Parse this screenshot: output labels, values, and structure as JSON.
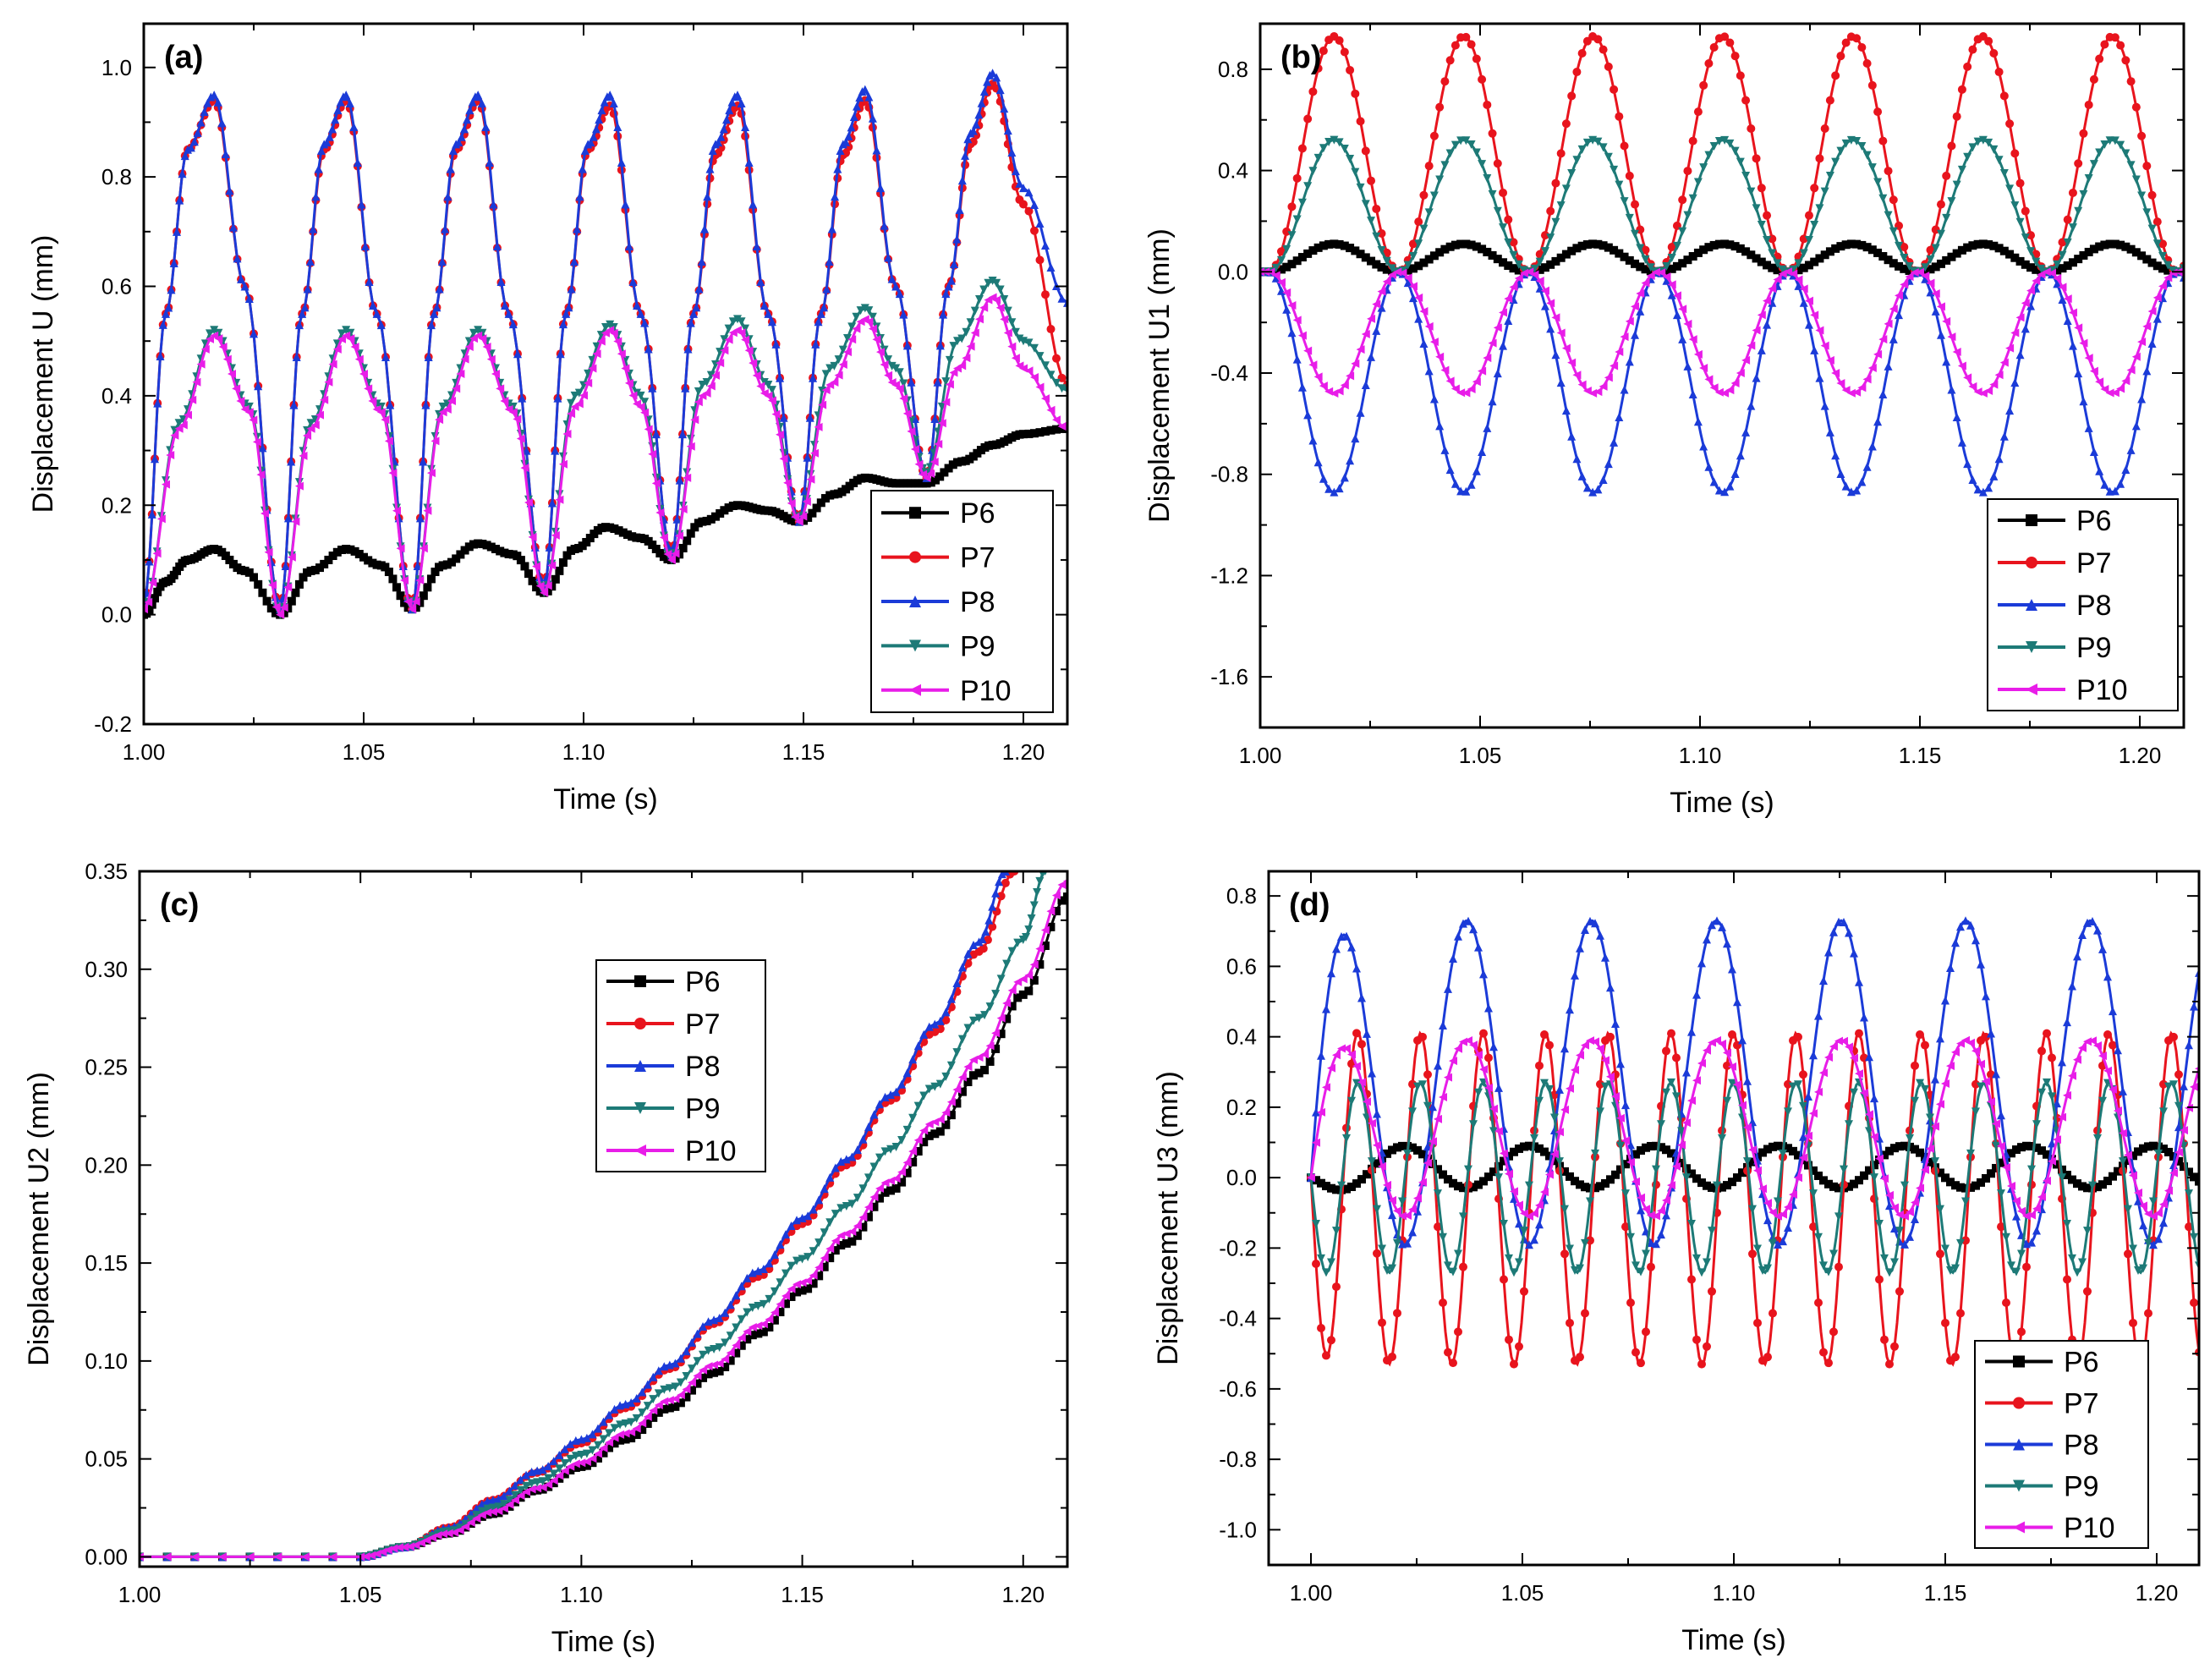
{
  "chart_data": [
    {
      "panel": "(a)",
      "type": "line",
      "xlabel": "Time (s)",
      "ylabel": "Displacement U (mm)",
      "xlim": [
        1.0,
        1.21
      ],
      "ylim": [
        -0.2,
        1.08
      ],
      "xticks": [
        1.0,
        1.05,
        1.1,
        1.15,
        1.2
      ],
      "xtick_labels": [
        "1.00",
        "1.05",
        "1.10",
        "1.15",
        "1.20"
      ],
      "yticks": [
        -0.2,
        0.0,
        0.2,
        0.4,
        0.6,
        0.8,
        1.0
      ],
      "ytick_labels": [
        "-0.2",
        "0.0",
        "0.2",
        "0.4",
        "0.6",
        "0.8",
        "1.0"
      ],
      "legend": "bottom-right",
      "series": [
        {
          "name": "P6",
          "color": "#000000",
          "marker": "square",
          "x": [
            1.0,
            1.005,
            1.01,
            1.016,
            1.023,
            1.031,
            1.038,
            1.046,
            1.054,
            1.061,
            1.068,
            1.076,
            1.084,
            1.091,
            1.098,
            1.105,
            1.113,
            1.12,
            1.127,
            1.135,
            1.142,
            1.149,
            1.157,
            1.164,
            1.171,
            1.178,
            1.186,
            1.193,
            1.2,
            1.21
          ],
          "y": [
            0.0,
            0.06,
            0.1,
            0.12,
            0.08,
            0.0,
            0.08,
            0.12,
            0.09,
            0.01,
            0.09,
            0.13,
            0.11,
            0.04,
            0.12,
            0.16,
            0.14,
            0.1,
            0.17,
            0.2,
            0.19,
            0.17,
            0.22,
            0.25,
            0.24,
            0.24,
            0.28,
            0.31,
            0.33,
            0.34
          ]
        },
        {
          "name": "P7",
          "color": "#e8141d",
          "marker": "circle",
          "x": [
            1.0,
            1.005,
            1.01,
            1.016,
            1.023,
            1.031,
            1.036,
            1.041,
            1.046,
            1.053,
            1.061,
            1.066,
            1.071,
            1.076,
            1.083,
            1.091,
            1.096,
            1.101,
            1.106,
            1.113,
            1.12,
            1.125,
            1.13,
            1.135,
            1.142,
            1.149,
            1.154,
            1.159,
            1.164,
            1.171,
            1.178,
            1.183,
            1.188,
            1.193,
            1.2,
            1.21
          ],
          "y": [
            0.02,
            0.55,
            0.85,
            0.94,
            0.6,
            0.01,
            0.55,
            0.85,
            0.94,
            0.55,
            0.01,
            0.55,
            0.85,
            0.94,
            0.55,
            0.05,
            0.55,
            0.85,
            0.93,
            0.55,
            0.11,
            0.55,
            0.84,
            0.93,
            0.55,
            0.17,
            0.55,
            0.84,
            0.94,
            0.6,
            0.25,
            0.6,
            0.86,
            0.97,
            0.75,
            0.42
          ]
        },
        {
          "name": "P8",
          "color": "#1b3bd8",
          "marker": "triangle-up",
          "x": [
            1.0,
            1.005,
            1.01,
            1.016,
            1.023,
            1.031,
            1.036,
            1.041,
            1.046,
            1.053,
            1.061,
            1.066,
            1.071,
            1.076,
            1.083,
            1.091,
            1.096,
            1.101,
            1.106,
            1.113,
            1.12,
            1.125,
            1.13,
            1.135,
            1.142,
            1.149,
            1.154,
            1.159,
            1.164,
            1.171,
            1.178,
            1.183,
            1.188,
            1.193,
            1.2,
            1.21
          ],
          "y": [
            0.02,
            0.55,
            0.85,
            0.95,
            0.6,
            0.01,
            0.55,
            0.86,
            0.95,
            0.55,
            0.01,
            0.55,
            0.86,
            0.95,
            0.55,
            0.05,
            0.55,
            0.86,
            0.95,
            0.55,
            0.11,
            0.55,
            0.86,
            0.95,
            0.55,
            0.17,
            0.55,
            0.86,
            0.96,
            0.6,
            0.25,
            0.6,
            0.88,
            0.99,
            0.78,
            0.57
          ]
        },
        {
          "name": "P9",
          "color": "#1d7a77",
          "marker": "triangle-down",
          "x": [
            1.0,
            1.008,
            1.016,
            1.024,
            1.031,
            1.038,
            1.046,
            1.054,
            1.061,
            1.068,
            1.076,
            1.084,
            1.091,
            1.098,
            1.106,
            1.113,
            1.12,
            1.127,
            1.135,
            1.142,
            1.149,
            1.156,
            1.164,
            1.171,
            1.178,
            1.185,
            1.193,
            1.2,
            1.21
          ],
          "y": [
            0.01,
            0.35,
            0.52,
            0.38,
            0.0,
            0.35,
            0.52,
            0.38,
            0.01,
            0.38,
            0.52,
            0.38,
            0.04,
            0.4,
            0.53,
            0.4,
            0.1,
            0.42,
            0.54,
            0.42,
            0.17,
            0.45,
            0.56,
            0.45,
            0.26,
            0.5,
            0.61,
            0.5,
            0.41
          ]
        },
        {
          "name": "P10",
          "color": "#e81de8",
          "marker": "triangle-left",
          "x": [
            1.0,
            1.008,
            1.016,
            1.024,
            1.031,
            1.038,
            1.046,
            1.054,
            1.061,
            1.068,
            1.076,
            1.084,
            1.091,
            1.098,
            1.106,
            1.113,
            1.12,
            1.127,
            1.135,
            1.142,
            1.149,
            1.156,
            1.164,
            1.171,
            1.178,
            1.185,
            1.193,
            1.2,
            1.21
          ],
          "y": [
            0.01,
            0.34,
            0.51,
            0.37,
            0.0,
            0.34,
            0.51,
            0.37,
            0.01,
            0.37,
            0.51,
            0.37,
            0.04,
            0.38,
            0.52,
            0.38,
            0.1,
            0.4,
            0.52,
            0.4,
            0.17,
            0.42,
            0.54,
            0.42,
            0.25,
            0.45,
            0.58,
            0.45,
            0.34
          ]
        }
      ]
    },
    {
      "panel": "(b)",
      "type": "line",
      "xlabel": "Time (s)",
      "ylabel": "Displacement U1 (mm)",
      "xlim": [
        1.0,
        1.21
      ],
      "ylim": [
        -1.8,
        0.98
      ],
      "xticks": [
        1.0,
        1.05,
        1.1,
        1.15,
        1.2
      ],
      "xtick_labels": [
        "1.00",
        "1.05",
        "1.10",
        "1.15",
        "1.20"
      ],
      "yticks": [
        -1.6,
        -1.2,
        -0.8,
        -0.4,
        0.0,
        0.4,
        0.8
      ],
      "ytick_labels": [
        "-1.6",
        "-1.2",
        "-0.8",
        "-0.4",
        "0.0",
        "0.4",
        "0.8"
      ],
      "legend": "bottom-right",
      "series": [
        {
          "name": "P6",
          "color": "#000000",
          "marker": "square",
          "amplitude": 0.11,
          "offset": 0.0,
          "start": 1.002,
          "period": 0.0295,
          "x_end": 1.21
        },
        {
          "name": "P7",
          "color": "#e8141d",
          "marker": "circle",
          "amplitude": 0.93,
          "offset": 0.0,
          "start": 1.002,
          "period": 0.0295,
          "x_end": 1.21
        },
        {
          "name": "P8",
          "color": "#1b3bd8",
          "marker": "triangle-up",
          "amplitude": -0.87,
          "offset": 0.0,
          "start": 1.002,
          "period": 0.0295,
          "x_end": 1.21
        },
        {
          "name": "P9",
          "color": "#1d7a77",
          "marker": "triangle-down",
          "amplitude": 0.52,
          "offset": 0.0,
          "start": 1.002,
          "period": 0.0295,
          "x_end": 1.21
        },
        {
          "name": "P10",
          "color": "#e81de8",
          "marker": "triangle-left",
          "amplitude": -0.48,
          "offset": 0.0,
          "start": 1.002,
          "period": 0.0295,
          "x_end": 1.21
        }
      ]
    },
    {
      "panel": "(c)",
      "type": "line",
      "xlabel": "Time (s)",
      "ylabel": "Displacement U2 (mm)",
      "xlim": [
        1.0,
        1.21
      ],
      "ylim": [
        -0.005,
        0.35
      ],
      "xticks": [
        1.0,
        1.05,
        1.1,
        1.15,
        1.2
      ],
      "xtick_labels": [
        "1.00",
        "1.05",
        "1.10",
        "1.15",
        "1.20"
      ],
      "yticks": [
        0.0,
        0.05,
        0.1,
        0.15,
        0.2,
        0.25,
        0.3,
        0.35
      ],
      "ytick_labels": [
        "0.00",
        "0.05",
        "0.10",
        "0.15",
        "0.20",
        "0.25",
        "0.30",
        "0.35"
      ],
      "legend": "upper-middle",
      "series": [
        {
          "name": "P6",
          "color": "#000000",
          "marker": "square",
          "x": [
            1.0,
            1.05,
            1.06,
            1.07,
            1.08,
            1.09,
            1.1,
            1.11,
            1.12,
            1.13,
            1.14,
            1.15,
            1.16,
            1.17,
            1.18,
            1.19,
            1.2,
            1.21
          ],
          "y": [
            0.0,
            0.0,
            0.005,
            0.012,
            0.022,
            0.034,
            0.046,
            0.06,
            0.076,
            0.094,
            0.114,
            0.136,
            0.16,
            0.187,
            0.216,
            0.247,
            0.287,
            0.337
          ]
        },
        {
          "name": "P7",
          "color": "#e8141d",
          "marker": "circle",
          "x": [
            1.0,
            1.05,
            1.06,
            1.07,
            1.08,
            1.09,
            1.1,
            1.11,
            1.12,
            1.13,
            1.14,
            1.15,
            1.16,
            1.17,
            1.18,
            1.19,
            1.198
          ],
          "y": [
            0.0,
            0.0,
            0.005,
            0.015,
            0.029,
            0.043,
            0.058,
            0.076,
            0.096,
            0.119,
            0.143,
            0.17,
            0.2,
            0.233,
            0.268,
            0.309,
            0.35
          ]
        },
        {
          "name": "P8",
          "color": "#1b3bd8",
          "marker": "triangle-up",
          "x": [
            1.0,
            1.05,
            1.06,
            1.07,
            1.08,
            1.09,
            1.1,
            1.11,
            1.12,
            1.13,
            1.14,
            1.15,
            1.16,
            1.17,
            1.18,
            1.19,
            1.196
          ],
          "y": [
            0.0,
            0.0,
            0.005,
            0.015,
            0.029,
            0.044,
            0.06,
            0.078,
            0.098,
            0.121,
            0.146,
            0.173,
            0.203,
            0.236,
            0.272,
            0.314,
            0.35
          ]
        },
        {
          "name": "P9",
          "color": "#1d7a77",
          "marker": "triangle-down",
          "x": [
            1.0,
            1.05,
            1.06,
            1.07,
            1.08,
            1.09,
            1.1,
            1.11,
            1.12,
            1.13,
            1.14,
            1.15,
            1.16,
            1.17,
            1.18,
            1.19,
            1.2,
            1.205
          ],
          "y": [
            0.0,
            0.0,
            0.005,
            0.013,
            0.025,
            0.038,
            0.052,
            0.068,
            0.086,
            0.106,
            0.128,
            0.152,
            0.179,
            0.208,
            0.24,
            0.275,
            0.315,
            0.35
          ]
        },
        {
          "name": "P10",
          "color": "#e81de8",
          "marker": "triangle-left",
          "x": [
            1.0,
            1.05,
            1.06,
            1.07,
            1.08,
            1.09,
            1.1,
            1.11,
            1.12,
            1.13,
            1.14,
            1.15,
            1.16,
            1.17,
            1.18,
            1.19,
            1.2,
            1.21
          ],
          "y": [
            0.0,
            0.0,
            0.005,
            0.012,
            0.023,
            0.035,
            0.048,
            0.063,
            0.08,
            0.098,
            0.118,
            0.14,
            0.165,
            0.192,
            0.222,
            0.255,
            0.295,
            0.345
          ]
        }
      ]
    },
    {
      "panel": "(d)",
      "type": "line",
      "xlabel": "Time (s)",
      "ylabel": "Displacement U3 (mm)",
      "xlim": [
        0.99,
        1.21
      ],
      "ylim": [
        -1.1,
        0.87
      ],
      "xticks": [
        1.0,
        1.05,
        1.1,
        1.15,
        1.2
      ],
      "xtick_labels": [
        "1.00",
        "1.05",
        "1.10",
        "1.15",
        "1.20"
      ],
      "yticks": [
        -1.0,
        -0.8,
        -0.6,
        -0.4,
        -0.2,
        0.0,
        0.2,
        0.4,
        0.6,
        0.8
      ],
      "ytick_labels": [
        "-1.0",
        "-0.8",
        "-0.6",
        "-0.4",
        "-0.2",
        "0.0",
        "0.2",
        "0.4",
        "0.6",
        "0.8"
      ],
      "legend": "bottom-right",
      "series": [
        {
          "name": "P6",
          "color": "#000000",
          "marker": "square",
          "center": 0.03,
          "amplitude": -0.06,
          "start": 1.0,
          "period": 0.0295,
          "x_end": 1.21
        },
        {
          "name": "P7",
          "color": "#e8141d",
          "marker": "circle",
          "center": -0.06,
          "amplitude": -0.47,
          "start": 1.0,
          "period": 0.0148,
          "x_end": 1.21
        },
        {
          "name": "P8",
          "color": "#1b3bd8",
          "marker": "triangle-up",
          "center": 0.27,
          "amplitude": 0.46,
          "start": 1.0,
          "period": 0.0295,
          "x_end": 1.21
        },
        {
          "name": "P9",
          "color": "#1d7a77",
          "marker": "triangle-down",
          "center": 0.0,
          "amplitude": -0.27,
          "start": 1.0,
          "period": 0.0148,
          "x_end": 1.21
        },
        {
          "name": "P10",
          "color": "#e81de8",
          "marker": "triangle-left",
          "center": 0.14,
          "amplitude": 0.25,
          "start": 1.0,
          "period": 0.0295,
          "x_end": 1.21
        }
      ]
    }
  ]
}
